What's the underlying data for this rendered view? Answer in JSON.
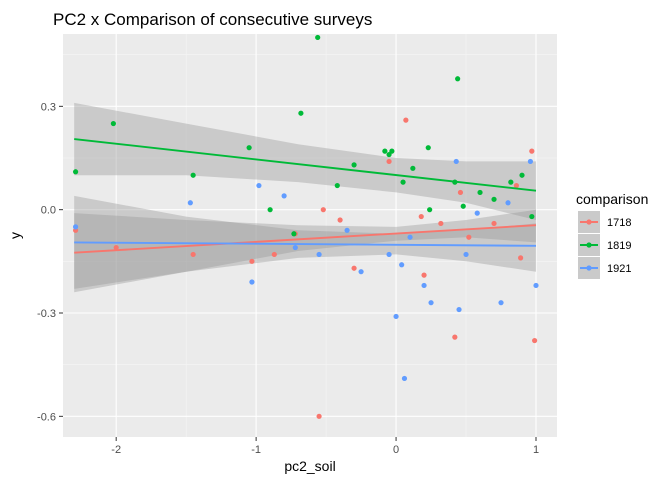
{
  "chart_data": {
    "type": "scatter",
    "title": "PC2 x Comparison of consecutive surveys",
    "xlabel": "pc2_soil",
    "ylabel": "y",
    "xlim": [
      -2.38,
      1.15
    ],
    "ylim": [
      -0.66,
      0.51
    ],
    "x_ticks": [
      -2,
      -1,
      0,
      1
    ],
    "x_tick_labels": [
      "-2",
      "-1",
      "0",
      "1"
    ],
    "y_ticks": [
      -0.6,
      -0.3,
      0.0,
      0.3
    ],
    "y_tick_labels": [
      "-0.6",
      "-0.3",
      "0.0",
      "0.3"
    ],
    "grid": true,
    "legend": {
      "title": "comparison",
      "position": "right"
    },
    "series": [
      {
        "name": "1718",
        "color": "#F8766D",
        "trend": {
          "x": [
            -2.3,
            1.0
          ],
          "y": [
            -0.125,
            -0.045
          ]
        },
        "band": {
          "x": [
            -2.3,
            -1.5,
            -0.7,
            0.0,
            0.5,
            1.0
          ],
          "upper": [
            -0.01,
            -0.03,
            -0.045,
            -0.05,
            -0.03,
            0.0
          ],
          "lower": [
            -0.24,
            -0.18,
            -0.12,
            -0.09,
            -0.08,
            -0.095
          ]
        },
        "points": [
          {
            "x": -2.29,
            "y": -0.06
          },
          {
            "x": -2.0,
            "y": -0.11
          },
          {
            "x": -1.45,
            "y": -0.13
          },
          {
            "x": -1.03,
            "y": -0.15
          },
          {
            "x": -0.87,
            "y": -0.13
          },
          {
            "x": -0.72,
            "y": -0.07
          },
          {
            "x": -0.55,
            "y": -0.6
          },
          {
            "x": -0.52,
            "y": 0.0
          },
          {
            "x": -0.4,
            "y": -0.03
          },
          {
            "x": -0.3,
            "y": -0.17
          },
          {
            "x": -0.05,
            "y": 0.14
          },
          {
            "x": 0.07,
            "y": 0.26
          },
          {
            "x": 0.18,
            "y": -0.02
          },
          {
            "x": 0.2,
            "y": -0.19
          },
          {
            "x": 0.32,
            "y": -0.04
          },
          {
            "x": 0.42,
            "y": -0.37
          },
          {
            "x": 0.46,
            "y": 0.05
          },
          {
            "x": 0.52,
            "y": -0.08
          },
          {
            "x": 0.7,
            "y": -0.04
          },
          {
            "x": 0.86,
            "y": 0.07
          },
          {
            "x": 0.89,
            "y": -0.14
          },
          {
            "x": 0.97,
            "y": 0.17
          },
          {
            "x": 0.99,
            "y": -0.38
          }
        ]
      },
      {
        "name": "1819",
        "color": "#00BA38",
        "trend": {
          "x": [
            -2.3,
            1.0
          ],
          "y": [
            0.205,
            0.055
          ]
        },
        "band": {
          "x": [
            -2.3,
            -1.5,
            -0.7,
            0.0,
            0.5,
            1.0
          ],
          "upper": [
            0.31,
            0.25,
            0.19,
            0.15,
            0.14,
            0.14
          ],
          "lower": [
            0.1,
            0.1,
            0.08,
            0.05,
            0.02,
            -0.03
          ]
        },
        "points": [
          {
            "x": -2.29,
            "y": 0.11
          },
          {
            "x": -2.02,
            "y": 0.25
          },
          {
            "x": -1.45,
            "y": 0.1
          },
          {
            "x": -1.05,
            "y": 0.18
          },
          {
            "x": -0.9,
            "y": 0.0
          },
          {
            "x": -0.73,
            "y": -0.07
          },
          {
            "x": -0.68,
            "y": 0.28
          },
          {
            "x": -0.56,
            "y": 0.5
          },
          {
            "x": -0.42,
            "y": 0.07
          },
          {
            "x": -0.3,
            "y": 0.13
          },
          {
            "x": -0.08,
            "y": 0.17
          },
          {
            "x": -0.05,
            "y": 0.16
          },
          {
            "x": -0.03,
            "y": 0.17
          },
          {
            "x": 0.05,
            "y": 0.08
          },
          {
            "x": 0.12,
            "y": 0.12
          },
          {
            "x": 0.23,
            "y": 0.18
          },
          {
            "x": 0.24,
            "y": 0.0
          },
          {
            "x": 0.42,
            "y": 0.08
          },
          {
            "x": 0.44,
            "y": 0.38
          },
          {
            "x": 0.48,
            "y": 0.01
          },
          {
            "x": 0.6,
            "y": 0.05
          },
          {
            "x": 0.7,
            "y": 0.03
          },
          {
            "x": 0.82,
            "y": 0.08
          },
          {
            "x": 0.9,
            "y": 0.1
          },
          {
            "x": 0.97,
            "y": -0.02
          }
        ]
      },
      {
        "name": "1921",
        "color": "#619CFF",
        "trend": {
          "x": [
            -2.3,
            1.0
          ],
          "y": [
            -0.095,
            -0.105
          ]
        },
        "band": {
          "x": [
            -2.3,
            -1.5,
            -0.7,
            0.0,
            0.5,
            1.0
          ],
          "upper": [
            0.04,
            -0.02,
            -0.06,
            -0.07,
            -0.06,
            -0.04
          ],
          "lower": [
            -0.23,
            -0.18,
            -0.14,
            -0.13,
            -0.15,
            -0.18
          ]
        },
        "points": [
          {
            "x": -2.29,
            "y": -0.05
          },
          {
            "x": -1.47,
            "y": 0.02
          },
          {
            "x": -1.03,
            "y": -0.21
          },
          {
            "x": -0.98,
            "y": 0.07
          },
          {
            "x": -0.8,
            "y": 0.04
          },
          {
            "x": -0.72,
            "y": -0.11
          },
          {
            "x": -0.55,
            "y": -0.13
          },
          {
            "x": -0.35,
            "y": -0.06
          },
          {
            "x": -0.25,
            "y": -0.18
          },
          {
            "x": -0.05,
            "y": -0.13
          },
          {
            "x": 0.0,
            "y": -0.31
          },
          {
            "x": 0.04,
            "y": -0.16
          },
          {
            "x": 0.06,
            "y": -0.49
          },
          {
            "x": 0.1,
            "y": -0.08
          },
          {
            "x": 0.2,
            "y": -0.22
          },
          {
            "x": 0.25,
            "y": -0.27
          },
          {
            "x": 0.43,
            "y": 0.14
          },
          {
            "x": 0.45,
            "y": -0.29
          },
          {
            "x": 0.5,
            "y": -0.13
          },
          {
            "x": 0.58,
            "y": -0.01
          },
          {
            "x": 0.75,
            "y": -0.27
          },
          {
            "x": 0.8,
            "y": 0.02
          },
          {
            "x": 0.96,
            "y": 0.14
          },
          {
            "x": 1.0,
            "y": -0.22
          }
        ]
      }
    ]
  }
}
